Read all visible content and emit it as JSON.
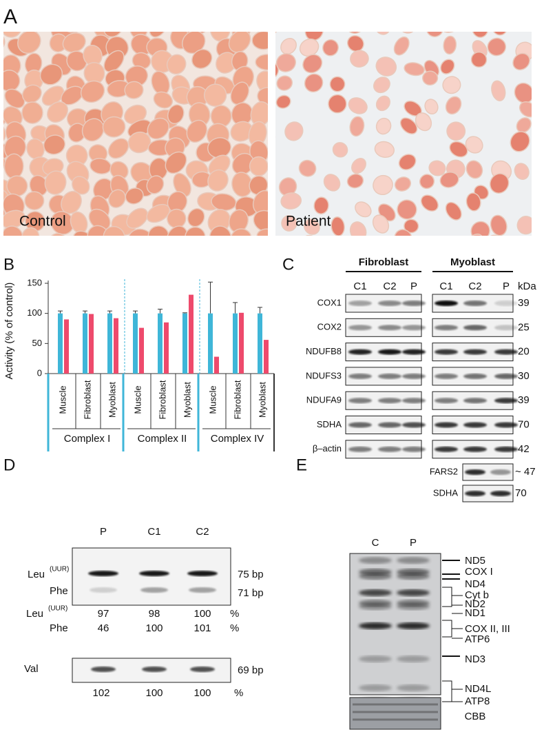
{
  "panel_a": {
    "label": "A",
    "images": [
      {
        "caption": "Control"
      },
      {
        "caption": "Patient"
      }
    ]
  },
  "panel_b": {
    "label": "B",
    "type": "bar",
    "y_label": "Activity (% of control)",
    "ylim": [
      0,
      150
    ],
    "yticks": [
      0,
      50,
      100,
      150
    ],
    "groups": [
      {
        "name": "Complex I",
        "categories": [
          "Muscle",
          "Fibroblast",
          "Myoblast"
        ]
      },
      {
        "name": "Complex II",
        "categories": [
          "Muscle",
          "Fibroblast",
          "Myoblast"
        ]
      },
      {
        "name": "Complex IV",
        "categories": [
          "Muscle",
          "Fibroblast",
          "Myoblast"
        ]
      }
    ],
    "series": [
      {
        "color": "#3fb6d8",
        "values": [
          100,
          100,
          100,
          100,
          100,
          100,
          100,
          100,
          100
        ],
        "errors": [
          4,
          4,
          4,
          4,
          7,
          1,
          52,
          18,
          10
        ]
      },
      {
        "color": "#ee4a6c",
        "values": [
          90,
          99,
          92,
          76,
          85,
          131,
          28,
          101,
          56
        ]
      }
    ]
  },
  "panel_c": {
    "label": "C",
    "cell_types": [
      "Fibroblast",
      "Myoblast"
    ],
    "lanes": [
      "C1",
      "C2",
      "P"
    ],
    "unit": "kDa",
    "rows": [
      {
        "protein": "COX1",
        "kda": 39
      },
      {
        "protein": "COX2",
        "kda": 25
      },
      {
        "protein": "NDUFB8",
        "kda": 20
      },
      {
        "protein": "NDUFS3",
        "kda": 30
      },
      {
        "protein": "NDUFA9",
        "kda": 39
      },
      {
        "protein": "SDHA",
        "kda": 70
      },
      {
        "protein": "β–actin",
        "kda": 42
      }
    ],
    "extra_rows": [
      {
        "protein": "FARS2",
        "kda": "~ 47"
      },
      {
        "protein": "SDHA",
        "kda": 70
      }
    ]
  },
  "panel_d": {
    "label": "D",
    "lanes": [
      "P",
      "C1",
      "C2"
    ],
    "bands": [
      {
        "name": "Leu",
        "superscript": "(UUR)",
        "size": "75 bp"
      },
      {
        "name": "Phe",
        "size": "71 bp"
      }
    ],
    "quant": [
      {
        "name": "Leu",
        "superscript": "(UUR)",
        "values": [
          97,
          98,
          100
        ],
        "unit": "%"
      },
      {
        "name": "Phe",
        "values": [
          46,
          100,
          101
        ],
        "unit": "%"
      }
    ],
    "val": {
      "name": "Val",
      "size": "69 bp",
      "values": [
        102,
        100,
        100
      ],
      "unit": "%"
    }
  },
  "panel_e": {
    "label": "E",
    "lanes": [
      "C",
      "P"
    ],
    "labels": [
      "ND5",
      "COX I",
      "ND4",
      "Cyt b",
      "ND2",
      "ND1",
      "COX II, III",
      "ATP6",
      "ND3",
      "ND4L",
      "ATP8"
    ],
    "loading": "CBB"
  }
}
